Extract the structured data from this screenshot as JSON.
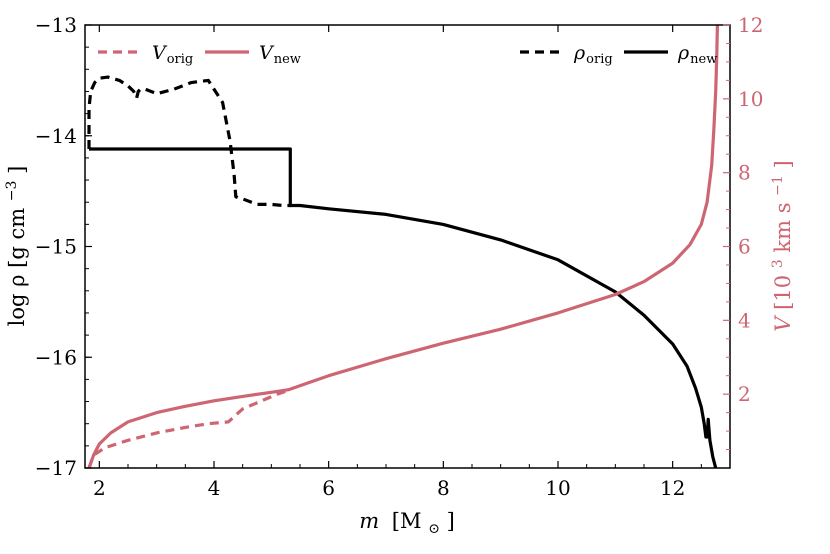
{
  "chart_data": {
    "type": "line",
    "title": "",
    "xlabel": {
      "var": "m",
      "unit": "[M",
      "unit_sub": "⊙",
      "unit_close": "]"
    },
    "ylabel_left": {
      "text": "log ρ [g cm",
      "sup": "−3",
      "close": "]"
    },
    "ylabel_right": {
      "var": "V",
      "text": " [10",
      "sup1": "3",
      "mid": " km s",
      "sup2": "−1",
      "close": "]"
    },
    "xlim": [
      1.75,
      13.0
    ],
    "ylim_left": [
      -17,
      -13
    ],
    "ylim_right": [
      0,
      12
    ],
    "x_ticks": [
      2,
      4,
      6,
      8,
      10,
      12
    ],
    "x_tick_labels": [
      "2",
      "4",
      "6",
      "8",
      "10",
      "12"
    ],
    "y_left_ticks": [
      -17,
      -16,
      -15,
      -14,
      -13
    ],
    "y_left_tick_labels": [
      "−17",
      "−16",
      "−15",
      "−14",
      "−13"
    ],
    "y_right_ticks": [
      2,
      4,
      6,
      8,
      10,
      12
    ],
    "y_right_tick_labels": [
      "2",
      "4",
      "6",
      "8",
      "10",
      "12"
    ],
    "colors": {
      "velocity": "#cd6672",
      "density": "#000000"
    },
    "legend": [
      {
        "name": "V",
        "sub": "orig",
        "style": "dashed",
        "series": "V_orig",
        "placement": "top-left"
      },
      {
        "name": "V",
        "sub": "new",
        "style": "solid",
        "series": "V_new",
        "placement": "top-left"
      },
      {
        "name": "ρ",
        "sub": "orig",
        "style": "dashed",
        "series": "rho_orig",
        "placement": "top-right"
      },
      {
        "name": "ρ",
        "sub": "new",
        "style": "solid",
        "series": "rho_new",
        "placement": "top-right"
      }
    ],
    "series": [
      {
        "name": "rho_orig",
        "axis": "left",
        "style": "dashed",
        "color_key": "density",
        "x": [
          1.82,
          1.82,
          1.85,
          1.92,
          2.0,
          2.15,
          2.35,
          2.5,
          2.6,
          2.65,
          2.68,
          2.72,
          2.8,
          3.0,
          3.3,
          3.6,
          3.9,
          4.15,
          4.28,
          4.35,
          4.38,
          4.42,
          4.5,
          4.75,
          5.0,
          5.2,
          5.35
        ],
        "y": [
          -14.12,
          -13.75,
          -13.6,
          -13.52,
          -13.48,
          -13.47,
          -13.5,
          -13.55,
          -13.6,
          -13.66,
          -13.6,
          -13.58,
          -13.58,
          -13.62,
          -13.58,
          -13.52,
          -13.5,
          -13.7,
          -14.05,
          -14.35,
          -14.55,
          -14.56,
          -14.57,
          -14.62,
          -14.62,
          -14.63,
          -14.63
        ]
      },
      {
        "name": "rho_new",
        "axis": "left",
        "style": "solid",
        "color_key": "density",
        "x": [
          1.82,
          5.33,
          5.33,
          5.5,
          6.0,
          7.0,
          8.0,
          9.0,
          10.0,
          11.0,
          11.5,
          12.0,
          12.25,
          12.4,
          12.5,
          12.55,
          12.58,
          12.6,
          12.62,
          12.65,
          12.7,
          12.75
        ],
        "y": [
          -14.12,
          -14.12,
          -14.63,
          -14.63,
          -14.66,
          -14.71,
          -14.8,
          -14.94,
          -15.12,
          -15.41,
          -15.62,
          -15.88,
          -16.08,
          -16.28,
          -16.45,
          -16.6,
          -16.72,
          -16.72,
          -16.56,
          -16.75,
          -16.9,
          -17.0
        ]
      },
      {
        "name": "V_orig",
        "axis": "right",
        "style": "dashed",
        "color_key": "velocity",
        "x": [
          1.82,
          1.9,
          2.1,
          2.5,
          3.0,
          3.5,
          3.9,
          4.25,
          4.5,
          4.8,
          5.1,
          5.3
        ],
        "y": [
          0.0,
          0.35,
          0.55,
          0.75,
          0.95,
          1.1,
          1.2,
          1.25,
          1.6,
          1.8,
          2.0,
          2.1
        ]
      },
      {
        "name": "V_new",
        "axis": "right",
        "style": "solid",
        "color_key": "velocity",
        "x": [
          1.82,
          1.9,
          2.0,
          2.2,
          2.5,
          3.0,
          3.5,
          4.0,
          4.5,
          5.0,
          5.3,
          6.0,
          7.0,
          8.0,
          9.0,
          10.0,
          11.0,
          11.5,
          12.0,
          12.3,
          12.5,
          12.6,
          12.68,
          12.72,
          12.75,
          12.77,
          12.78
        ],
        "y": [
          0.0,
          0.35,
          0.65,
          0.95,
          1.25,
          1.5,
          1.67,
          1.82,
          1.94,
          2.05,
          2.12,
          2.5,
          2.96,
          3.38,
          3.76,
          4.2,
          4.7,
          5.05,
          5.55,
          6.05,
          6.6,
          7.2,
          8.2,
          9.2,
          10.2,
          11.2,
          12.0
        ]
      }
    ]
  }
}
